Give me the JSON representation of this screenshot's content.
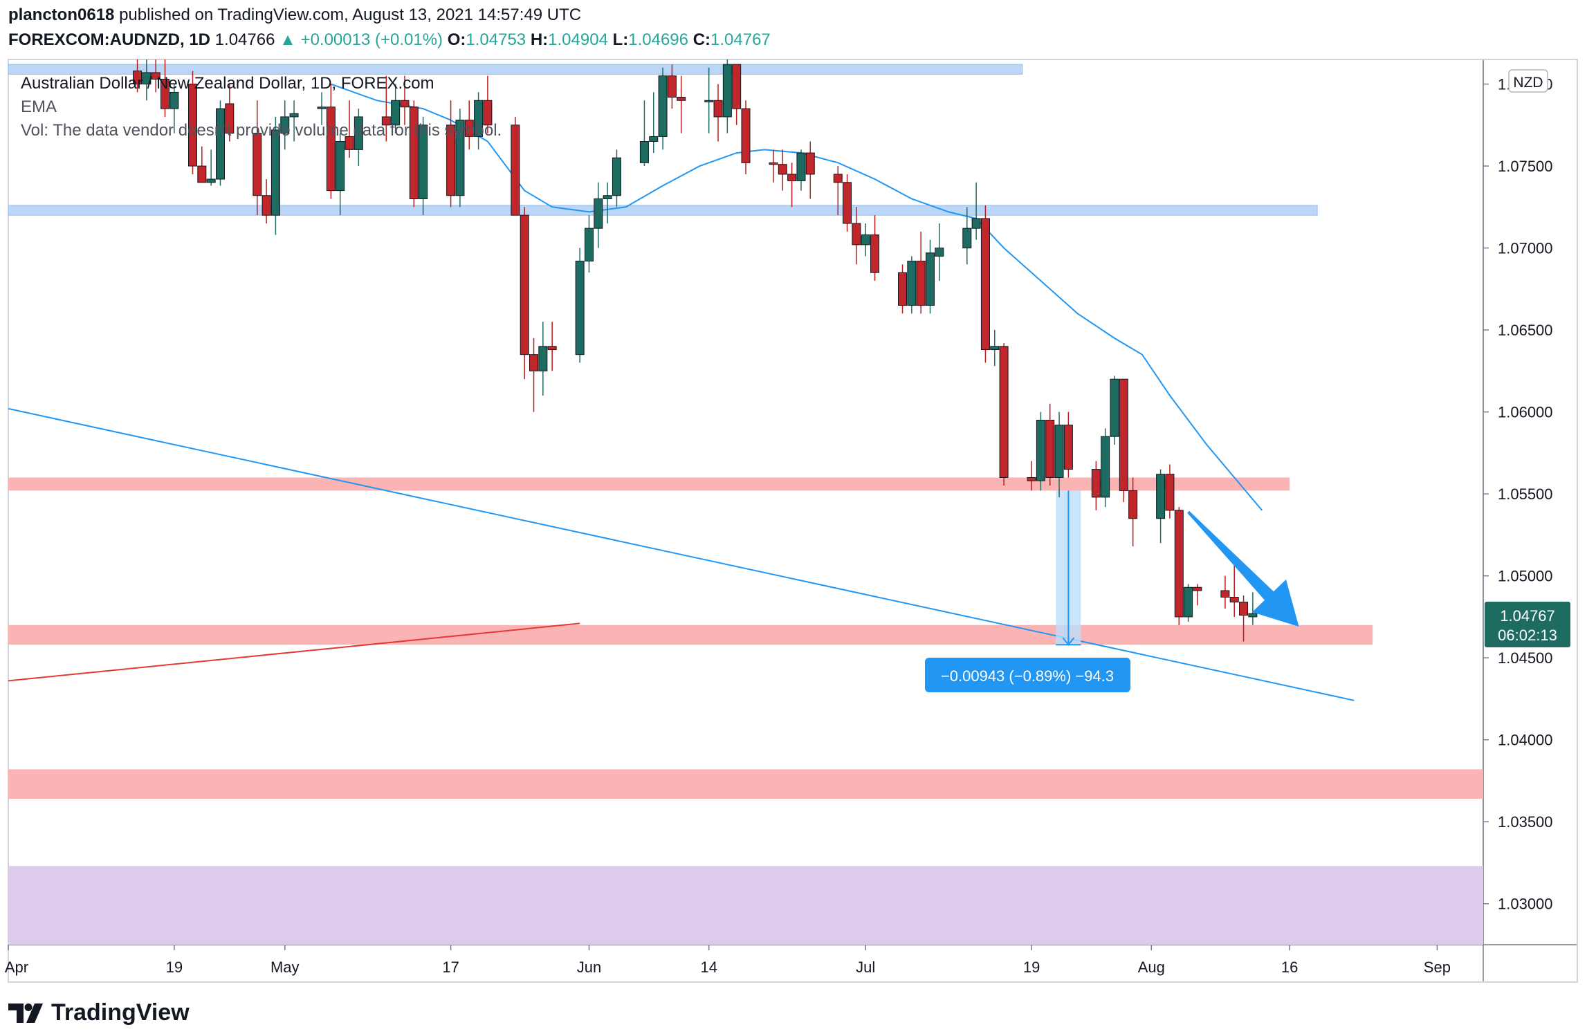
{
  "header": {
    "publisher": "plancton0618",
    "published_text": "published on TradingView.com, August 13, 2021 14:57:49 UTC",
    "symbol": "FOREXCOM:AUDNZD, 1D",
    "last_price": "1.04766",
    "change_arrow": "▲",
    "change": "+0.00013 (+0.01%)",
    "open_label": "O:",
    "open": "1.04753",
    "high_label": "H:",
    "high": "1.04904",
    "low_label": "L:",
    "low": "1.04696",
    "close_label": "C:",
    "close": "1.04767"
  },
  "legend": {
    "title": "Australian Dollar / New Zealand Dollar, 1D, FOREX.com",
    "ema": "EMA",
    "vol": "Vol: The data vendor doesn't provide volume data for this symbol."
  },
  "currency_badge": "NZD",
  "price_tag": {
    "price": "1.04767",
    "countdown": "06:02:13"
  },
  "measure_label": "−0.00943 (−0.89%) −94.3",
  "footer": {
    "brand": "TradingView"
  },
  "colors": {
    "up": "#26a69a",
    "up_body": "#1e6b62",
    "down": "#b71c1c",
    "down_body": "#c0262a",
    "ema": "#2196f3",
    "blue_zone": "#bbd6f7",
    "red_zone": "#fbb4b4",
    "purple_zone": "#dccbeb",
    "accent": "#2196f3",
    "trend_red": "#e53935"
  },
  "chart_data": {
    "type": "candlestick",
    "title": "Australian Dollar / New Zealand Dollar, 1D, FOREX.com",
    "ylim": [
      1.0275,
      1.0815
    ],
    "y_ticks": [
      "1.03000",
      "1.03500",
      "1.04000",
      "1.04500",
      "1.05000",
      "1.05500",
      "1.06000",
      "1.06500",
      "1.07000",
      "1.07500",
      "1.08000"
    ],
    "x_ticks": [
      {
        "label": "Apr",
        "day": 0
      },
      {
        "label": "19",
        "day": 18
      },
      {
        "label": "May",
        "day": 30
      },
      {
        "label": "17",
        "day": 48
      },
      {
        "label": "Jun",
        "day": 63
      },
      {
        "label": "14",
        "day": 76
      },
      {
        "label": "Jul",
        "day": 93
      },
      {
        "label": "19",
        "day": 111
      },
      {
        "label": "Aug",
        "day": 124
      },
      {
        "label": "16",
        "day": 139
      },
      {
        "label": "Sep",
        "day": 155
      }
    ],
    "xlim_days": [
      0,
      160
    ],
    "candles": [
      {
        "d": 14,
        "o": 1.0808,
        "h": 1.082,
        "l": 1.0795,
        "c": 1.08
      },
      {
        "d": 15,
        "o": 1.08,
        "h": 1.0815,
        "l": 1.079,
        "c": 1.0807
      },
      {
        "d": 16,
        "o": 1.0807,
        "h": 1.0818,
        "l": 1.0795,
        "c": 1.0803
      },
      {
        "d": 17,
        "o": 1.0803,
        "h": 1.0815,
        "l": 1.078,
        "c": 1.0785
      },
      {
        "d": 18,
        "o": 1.0785,
        "h": 1.08,
        "l": 1.077,
        "c": 1.0795
      },
      {
        "d": 20,
        "o": 1.08,
        "h": 1.0808,
        "l": 1.0745,
        "c": 1.075
      },
      {
        "d": 21,
        "o": 1.075,
        "h": 1.0762,
        "l": 1.074,
        "c": 1.074
      },
      {
        "d": 22,
        "o": 1.074,
        "h": 1.076,
        "l": 1.0738,
        "c": 1.0742
      },
      {
        "d": 23,
        "o": 1.0742,
        "h": 1.079,
        "l": 1.0738,
        "c": 1.0785
      },
      {
        "d": 24,
        "o": 1.0788,
        "h": 1.08,
        "l": 1.0765,
        "c": 1.077
      },
      {
        "d": 27,
        "o": 1.077,
        "h": 1.079,
        "l": 1.072,
        "c": 1.0732
      },
      {
        "d": 28,
        "o": 1.0732,
        "h": 1.0742,
        "l": 1.0715,
        "c": 1.072
      },
      {
        "d": 29,
        "o": 1.072,
        "h": 1.078,
        "l": 1.0708,
        "c": 1.0772
      },
      {
        "d": 30,
        "o": 1.077,
        "h": 1.079,
        "l": 1.076,
        "c": 1.078
      },
      {
        "d": 31,
        "o": 1.078,
        "h": 1.079,
        "l": 1.0765,
        "c": 1.0782
      },
      {
        "d": 34,
        "o": 1.0785,
        "h": 1.0795,
        "l": 1.0775,
        "c": 1.0786
      },
      {
        "d": 35,
        "o": 1.0786,
        "h": 1.08,
        "l": 1.073,
        "c": 1.0735
      },
      {
        "d": 36,
        "o": 1.0735,
        "h": 1.077,
        "l": 1.072,
        "c": 1.0765
      },
      {
        "d": 37,
        "o": 1.0768,
        "h": 1.079,
        "l": 1.0755,
        "c": 1.076
      },
      {
        "d": 38,
        "o": 1.076,
        "h": 1.0785,
        "l": 1.075,
        "c": 1.078
      },
      {
        "d": 41,
        "o": 1.078,
        "h": 1.0805,
        "l": 1.0765,
        "c": 1.0775
      },
      {
        "d": 42,
        "o": 1.0775,
        "h": 1.08,
        "l": 1.077,
        "c": 1.079
      },
      {
        "d": 43,
        "o": 1.079,
        "h": 1.0805,
        "l": 1.0775,
        "c": 1.0786
      },
      {
        "d": 44,
        "o": 1.0786,
        "h": 1.079,
        "l": 1.0725,
        "c": 1.073
      },
      {
        "d": 45,
        "o": 1.073,
        "h": 1.078,
        "l": 1.072,
        "c": 1.0775
      },
      {
        "d": 48,
        "o": 1.0775,
        "h": 1.079,
        "l": 1.0725,
        "c": 1.0732
      },
      {
        "d": 49,
        "o": 1.0732,
        "h": 1.0785,
        "l": 1.0725,
        "c": 1.0778
      },
      {
        "d": 50,
        "o": 1.0778,
        "h": 1.079,
        "l": 1.076,
        "c": 1.0768
      },
      {
        "d": 51,
        "o": 1.0768,
        "h": 1.0795,
        "l": 1.076,
        "c": 1.079
      },
      {
        "d": 52,
        "o": 1.079,
        "h": 1.0805,
        "l": 1.077,
        "c": 1.0775
      },
      {
        "d": 55,
        "o": 1.0775,
        "h": 1.078,
        "l": 1.0725,
        "c": 1.072
      },
      {
        "d": 56,
        "o": 1.072,
        "h": 1.0725,
        "l": 1.062,
        "c": 1.0635
      },
      {
        "d": 57,
        "o": 1.0635,
        "h": 1.0645,
        "l": 1.06,
        "c": 1.0625
      },
      {
        "d": 58,
        "o": 1.0625,
        "h": 1.0655,
        "l": 1.061,
        "c": 1.064
      },
      {
        "d": 59,
        "o": 1.064,
        "h": 1.0655,
        "l": 1.0625,
        "c": 1.0638
      },
      {
        "d": 62,
        "o": 1.0635,
        "h": 1.07,
        "l": 1.063,
        "c": 1.0692
      },
      {
        "d": 63,
        "o": 1.0692,
        "h": 1.072,
        "l": 1.0685,
        "c": 1.0712
      },
      {
        "d": 64,
        "o": 1.0712,
        "h": 1.074,
        "l": 1.07,
        "c": 1.073
      },
      {
        "d": 65,
        "o": 1.073,
        "h": 1.074,
        "l": 1.0715,
        "c": 1.0732
      },
      {
        "d": 66,
        "o": 1.0732,
        "h": 1.076,
        "l": 1.0725,
        "c": 1.0755
      },
      {
        "d": 69,
        "o": 1.0752,
        "h": 1.079,
        "l": 1.075,
        "c": 1.0765
      },
      {
        "d": 70,
        "o": 1.0765,
        "h": 1.0795,
        "l": 1.0758,
        "c": 1.0768
      },
      {
        "d": 71,
        "o": 1.0768,
        "h": 1.081,
        "l": 1.076,
        "c": 1.0805
      },
      {
        "d": 72,
        "o": 1.0805,
        "h": 1.0812,
        "l": 1.0785,
        "c": 1.0792
      },
      {
        "d": 73,
        "o": 1.0792,
        "h": 1.0805,
        "l": 1.077,
        "c": 1.079
      },
      {
        "d": 76,
        "o": 1.079,
        "h": 1.081,
        "l": 1.077,
        "c": 1.079
      },
      {
        "d": 77,
        "o": 1.079,
        "h": 1.08,
        "l": 1.0765,
        "c": 1.078
      },
      {
        "d": 78,
        "o": 1.078,
        "h": 1.0815,
        "l": 1.077,
        "c": 1.0812
      },
      {
        "d": 79,
        "o": 1.0812,
        "h": 1.0812,
        "l": 1.0775,
        "c": 1.0785
      },
      {
        "d": 80,
        "o": 1.0785,
        "h": 1.079,
        "l": 1.0745,
        "c": 1.0752
      },
      {
        "d": 83,
        "o": 1.0752,
        "h": 1.076,
        "l": 1.074,
        "c": 1.0751
      },
      {
        "d": 84,
        "o": 1.0751,
        "h": 1.076,
        "l": 1.0735,
        "c": 1.0745
      },
      {
        "d": 85,
        "o": 1.0745,
        "h": 1.0752,
        "l": 1.0725,
        "c": 1.0741
      },
      {
        "d": 86,
        "o": 1.0741,
        "h": 1.076,
        "l": 1.0735,
        "c": 1.0758
      },
      {
        "d": 87,
        "o": 1.0758,
        "h": 1.0765,
        "l": 1.073,
        "c": 1.0745
      },
      {
        "d": 90,
        "o": 1.0745,
        "h": 1.075,
        "l": 1.072,
        "c": 1.074
      },
      {
        "d": 91,
        "o": 1.074,
        "h": 1.0745,
        "l": 1.071,
        "c": 1.0715
      },
      {
        "d": 92,
        "o": 1.0715,
        "h": 1.0725,
        "l": 1.069,
        "c": 1.0702
      },
      {
        "d": 93,
        "o": 1.0702,
        "h": 1.0715,
        "l": 1.0695,
        "c": 1.0708
      },
      {
        "d": 94,
        "o": 1.0708,
        "h": 1.072,
        "l": 1.068,
        "c": 1.0685
      },
      {
        "d": 97,
        "o": 1.0685,
        "h": 1.069,
        "l": 1.066,
        "c": 1.0665
      },
      {
        "d": 98,
        "o": 1.0665,
        "h": 1.0695,
        "l": 1.066,
        "c": 1.0692
      },
      {
        "d": 99,
        "o": 1.0692,
        "h": 1.071,
        "l": 1.066,
        "c": 1.0665
      },
      {
        "d": 100,
        "o": 1.0665,
        "h": 1.0705,
        "l": 1.066,
        "c": 1.0697
      },
      {
        "d": 101,
        "o": 1.0695,
        "h": 1.0715,
        "l": 1.068,
        "c": 1.07
      },
      {
        "d": 104,
        "o": 1.07,
        "h": 1.0725,
        "l": 1.069,
        "c": 1.0712
      },
      {
        "d": 105,
        "o": 1.0712,
        "h": 1.074,
        "l": 1.0705,
        "c": 1.0718
      },
      {
        "d": 106,
        "o": 1.0718,
        "h": 1.0726,
        "l": 1.063,
        "c": 1.0638
      },
      {
        "d": 107,
        "o": 1.0638,
        "h": 1.065,
        "l": 1.0628,
        "c": 1.064
      },
      {
        "d": 108,
        "o": 1.064,
        "h": 1.0642,
        "l": 1.0555,
        "c": 1.056
      },
      {
        "d": 111,
        "o": 1.056,
        "h": 1.057,
        "l": 1.0552,
        "c": 1.0558
      },
      {
        "d": 112,
        "o": 1.0558,
        "h": 1.06,
        "l": 1.0552,
        "c": 1.0595
      },
      {
        "d": 113,
        "o": 1.0595,
        "h": 1.0605,
        "l": 1.0555,
        "c": 1.056
      },
      {
        "d": 114,
        "o": 1.056,
        "h": 1.06,
        "l": 1.0548,
        "c": 1.0592
      },
      {
        "d": 115,
        "o": 1.0592,
        "h": 1.06,
        "l": 1.056,
        "c": 1.0565
      },
      {
        "d": 118,
        "o": 1.0565,
        "h": 1.057,
        "l": 1.054,
        "c": 1.0548
      },
      {
        "d": 119,
        "o": 1.0548,
        "h": 1.059,
        "l": 1.0542,
        "c": 1.0585
      },
      {
        "d": 120,
        "o": 1.0585,
        "h": 1.0622,
        "l": 1.058,
        "c": 1.062
      },
      {
        "d": 121,
        "o": 1.062,
        "h": 1.062,
        "l": 1.0545,
        "c": 1.0552
      },
      {
        "d": 122,
        "o": 1.0552,
        "h": 1.056,
        "l": 1.0518,
        "c": 1.0535
      },
      {
        "d": 125,
        "o": 1.0535,
        "h": 1.0565,
        "l": 1.052,
        "c": 1.0562
      },
      {
        "d": 126,
        "o": 1.0562,
        "h": 1.0568,
        "l": 1.0535,
        "c": 1.054
      },
      {
        "d": 127,
        "o": 1.054,
        "h": 1.0542,
        "l": 1.047,
        "c": 1.0475
      },
      {
        "d": 128,
        "o": 1.0475,
        "h": 1.0495,
        "l": 1.0472,
        "c": 1.0493
      },
      {
        "d": 129,
        "o": 1.0493,
        "h": 1.0495,
        "l": 1.0482,
        "c": 1.0491
      },
      {
        "d": 132,
        "o": 1.0491,
        "h": 1.05,
        "l": 1.048,
        "c": 1.0487
      },
      {
        "d": 133,
        "o": 1.0487,
        "h": 1.051,
        "l": 1.0475,
        "c": 1.0484
      },
      {
        "d": 134,
        "o": 1.0484,
        "h": 1.0488,
        "l": 1.046,
        "c": 1.0476
      },
      {
        "d": 135,
        "o": 1.0475,
        "h": 1.049,
        "l": 1.047,
        "c": 1.0477
      }
    ],
    "ema": [
      {
        "d": 35,
        "v": 1.08
      },
      {
        "d": 40,
        "v": 1.079
      },
      {
        "d": 45,
        "v": 1.0785
      },
      {
        "d": 48,
        "v": 1.0778
      },
      {
        "d": 52,
        "v": 1.0765
      },
      {
        "d": 56,
        "v": 1.0735
      },
      {
        "d": 59,
        "v": 1.0725
      },
      {
        "d": 63,
        "v": 1.0722
      },
      {
        "d": 67,
        "v": 1.0725
      },
      {
        "d": 71,
        "v": 1.0738
      },
      {
        "d": 75,
        "v": 1.075
      },
      {
        "d": 79,
        "v": 1.0758
      },
      {
        "d": 82,
        "v": 1.076
      },
      {
        "d": 86,
        "v": 1.0758
      },
      {
        "d": 90,
        "v": 1.0752
      },
      {
        "d": 94,
        "v": 1.0742
      },
      {
        "d": 98,
        "v": 1.073
      },
      {
        "d": 102,
        "v": 1.0722
      },
      {
        "d": 105,
        "v": 1.0718
      },
      {
        "d": 108,
        "v": 1.07
      },
      {
        "d": 112,
        "v": 1.068
      },
      {
        "d": 116,
        "v": 1.066
      },
      {
        "d": 120,
        "v": 1.0645
      },
      {
        "d": 123,
        "v": 1.0635
      },
      {
        "d": 126,
        "v": 1.061
      },
      {
        "d": 130,
        "v": 1.058
      },
      {
        "d": 133,
        "v": 1.056
      },
      {
        "d": 136,
        "v": 1.054
      }
    ],
    "zones": [
      {
        "kind": "blue",
        "y1": 1.0812,
        "y2": 1.0806,
        "d1": 0,
        "d2": 110
      },
      {
        "kind": "blue",
        "y1": 1.0726,
        "y2": 1.072,
        "d1": 0,
        "d2": 142
      },
      {
        "kind": "red",
        "y1": 1.056,
        "y2": 1.0552,
        "d1": 0,
        "d2": 139
      },
      {
        "kind": "red",
        "y1": 1.047,
        "y2": 1.0458,
        "d1": 0,
        "d2": 148
      },
      {
        "kind": "red",
        "y1": 1.0382,
        "y2": 1.0364,
        "d1": 0,
        "d2": 165
      },
      {
        "kind": "purple",
        "y1": 1.0323,
        "y2": 1.0275,
        "d1": 0,
        "d2": 165
      }
    ],
    "trendlines": [
      {
        "color": "blue",
        "d1": 0,
        "v1": 1.0602,
        "d2": 146,
        "v2": 1.0424
      },
      {
        "color": "red",
        "d1": 0,
        "v1": 1.0436,
        "d2": 62,
        "v2": 1.0471
      }
    ],
    "measure": {
      "d": 115,
      "from": 1.0552,
      "to": 1.0458,
      "label": "−0.00943 (−0.89%) −94.3"
    },
    "arrow": {
      "d1": 128,
      "v1": 1.0539,
      "d2": 140,
      "v2": 1.0469
    }
  }
}
